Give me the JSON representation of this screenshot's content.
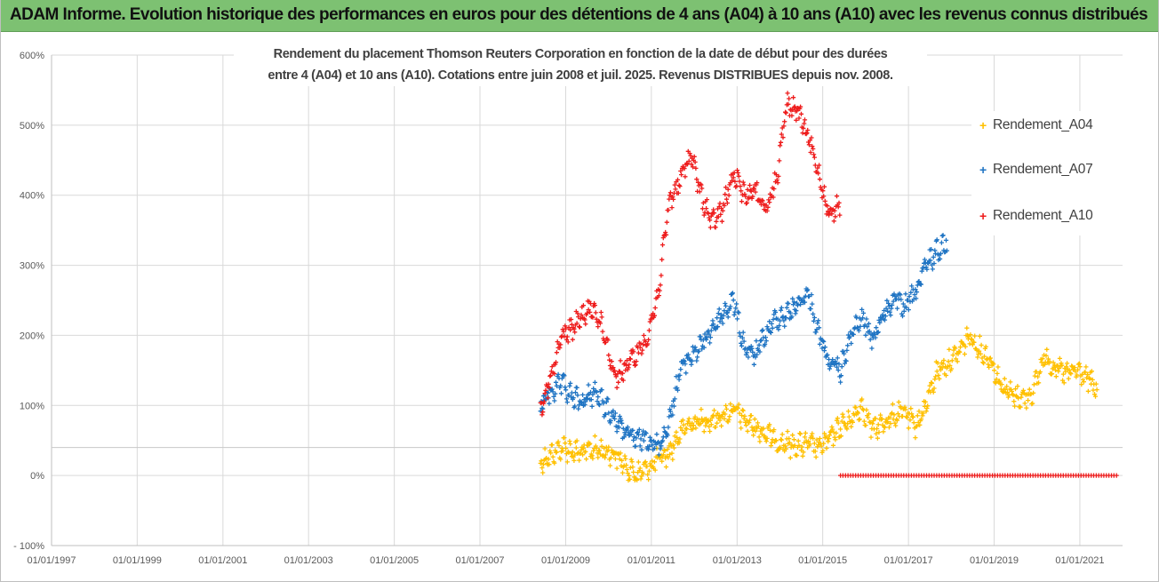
{
  "header": {
    "title": "ADAM Informe. Evolution historique des performances en euros pour des détentions de 4 ans (A04) à 10 ans (A10) avec les revenus connus distribués"
  },
  "chart_data": {
    "type": "scatter",
    "title_lines": [
      "Rendement du placement Thomson Reuters Corporation en fonction de la date de début pour des durées",
      "entre 4 (A04) et 10 ans (A10). Cotations entre juin 2008 et juil. 2025. Revenus DISTRIBUES depuis nov. 2008."
    ],
    "xlabel": "",
    "ylabel": "",
    "x_axis": {
      "type": "date",
      "range": [
        "1997-01-01",
        "2021-12-31"
      ],
      "tick_labels": [
        "01/01/1997",
        "01/01/1999",
        "01/01/2001",
        "01/01/2003",
        "01/01/2005",
        "01/01/2007",
        "01/01/2009",
        "01/01/2011",
        "01/01/2013",
        "01/01/2015",
        "01/01/2017",
        "01/01/2019",
        "01/01/2021"
      ]
    },
    "y_axis": {
      "unit": "%",
      "range": [
        -100,
        600
      ],
      "tick_labels": [
        "- 100%",
        "0%",
        "100%",
        "200%",
        "300%",
        "400%",
        "500%",
        "600%"
      ]
    },
    "grid": true,
    "legend_position": "right",
    "marker": "+",
    "series": [
      {
        "name": "Rendement_A04",
        "color": "#ffc000",
        "x": [
          "2008-06",
          "2008-09",
          "2008-12",
          "2009-03",
          "2009-06",
          "2009-09",
          "2009-12",
          "2010-03",
          "2010-06",
          "2010-09",
          "2010-12",
          "2011-03",
          "2011-06",
          "2011-09",
          "2011-12",
          "2012-03",
          "2012-06",
          "2012-09",
          "2012-12",
          "2013-03",
          "2013-06",
          "2013-09",
          "2013-12",
          "2014-03",
          "2014-06",
          "2014-09",
          "2014-12",
          "2015-03",
          "2015-06",
          "2015-09",
          "2015-12",
          "2016-03",
          "2016-06",
          "2016-09",
          "2016-12",
          "2017-03",
          "2017-06",
          "2017-09",
          "2017-12",
          "2018-03",
          "2018-06",
          "2018-09",
          "2018-12",
          "2019-03",
          "2019-06",
          "2019-09",
          "2019-12",
          "2020-03",
          "2020-06",
          "2020-09",
          "2020-12",
          "2021-03",
          "2021-06"
        ],
        "y": [
          20,
          30,
          40,
          35,
          32,
          38,
          35,
          30,
          12,
          2,
          10,
          22,
          32,
          60,
          75,
          78,
          80,
          85,
          95,
          80,
          70,
          60,
          50,
          45,
          42,
          45,
          40,
          52,
          70,
          80,
          100,
          65,
          75,
          85,
          90,
          70,
          100,
          150,
          160,
          175,
          200,
          180,
          165,
          130,
          115,
          110,
          120,
          170,
          155,
          145,
          150,
          140,
          120
        ]
      },
      {
        "name": "Rendement_A07",
        "color": "#1f74c3",
        "x": [
          "2008-06",
          "2008-09",
          "2008-12",
          "2009-03",
          "2009-06",
          "2009-09",
          "2009-12",
          "2010-03",
          "2010-06",
          "2010-09",
          "2010-12",
          "2011-03",
          "2011-06",
          "2011-09",
          "2011-12",
          "2012-03",
          "2012-06",
          "2012-09",
          "2012-12",
          "2013-03",
          "2013-06",
          "2013-09",
          "2013-12",
          "2014-03",
          "2014-06",
          "2014-09",
          "2014-12",
          "2015-03",
          "2015-06",
          "2015-09",
          "2015-12",
          "2016-03",
          "2016-06",
          "2016-09",
          "2016-12",
          "2017-03",
          "2017-06",
          "2017-09",
          "2017-12"
        ],
        "y": [
          100,
          120,
          130,
          110,
          105,
          120,
          100,
          80,
          60,
          50,
          55,
          40,
          75,
          150,
          170,
          185,
          210,
          230,
          250,
          185,
          170,
          200,
          225,
          230,
          245,
          260,
          200,
          160,
          150,
          200,
          225,
          195,
          230,
          250,
          240,
          260,
          300,
          320,
          335
        ]
      },
      {
        "name": "Rendement_A10",
        "color": "#ee1c1c",
        "x": [
          "2008-06",
          "2008-09",
          "2008-12",
          "2009-03",
          "2009-06",
          "2009-09",
          "2009-12",
          "2010-03",
          "2010-06",
          "2010-09",
          "2010-12",
          "2011-03",
          "2011-06",
          "2011-09",
          "2011-12",
          "2012-03",
          "2012-06",
          "2012-09",
          "2012-12",
          "2013-03",
          "2013-06",
          "2013-09",
          "2013-12",
          "2014-03",
          "2014-06",
          "2014-09",
          "2014-12",
          "2015-03",
          "2015-06"
        ],
        "y": [
          100,
          140,
          200,
          210,
          230,
          240,
          200,
          140,
          155,
          175,
          200,
          260,
          390,
          420,
          460,
          400,
          360,
          380,
          430,
          400,
          410,
          380,
          420,
          530,
          520,
          480,
          430,
          370,
          390
        ]
      },
      {
        "name": "Rendement_A10",
        "color": "#ee1c1c",
        "x": [
          "2015-06",
          "2021-12"
        ],
        "y": [
          0,
          0
        ]
      }
    ]
  }
}
